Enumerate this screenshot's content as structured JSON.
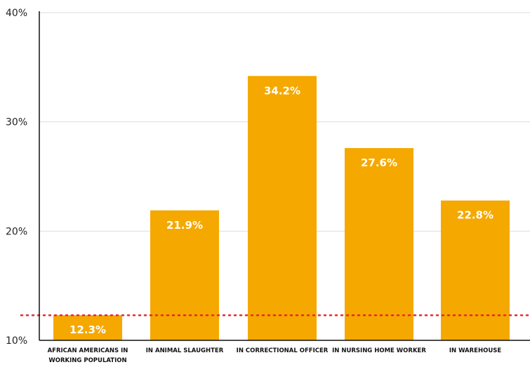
{
  "chart_data": {
    "type": "bar",
    "categories": [
      [
        "AFRICAN AMERICANS IN",
        "WORKING POPULATION"
      ],
      [
        "IN ANIMAL SLAUGHTER"
      ],
      [
        "IN CORRECTIONAL OFFICER"
      ],
      [
        "IN NURSING HOME WORKER"
      ],
      [
        "IN WAREHOUSE"
      ]
    ],
    "values": [
      12.3,
      21.9,
      34.2,
      27.6,
      22.8
    ],
    "value_labels": [
      "12.3%",
      "21.9%",
      "34.2%",
      "27.6%",
      "22.8%"
    ],
    "ylim": [
      10,
      40
    ],
    "yticks": [
      10,
      20,
      30,
      40
    ],
    "ytick_labels": [
      "10%",
      "20%",
      "30%",
      "40%"
    ],
    "reference_line": 12.3,
    "grid": true,
    "title": "",
    "xlabel": "",
    "ylabel": "",
    "colors": {
      "bar": "#F5A800",
      "reference_line": "#E8262A",
      "grid": "#dddddd",
      "axis": "#111111"
    }
  }
}
